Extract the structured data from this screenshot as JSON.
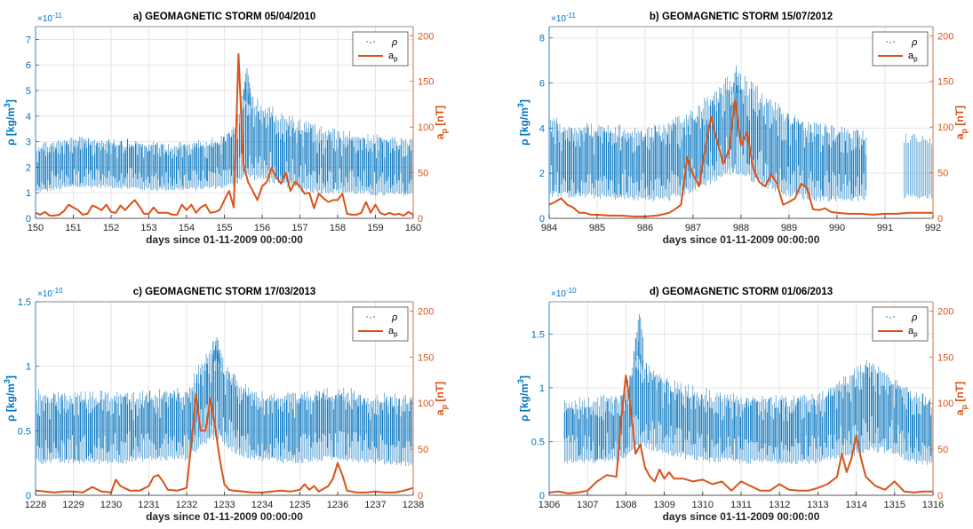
{
  "figure": {
    "colors": {
      "rho": "#0072BD",
      "ap": "#D95319",
      "axis": "#262626",
      "grid": "#e6e6e6"
    },
    "common": {
      "xlabel": "days since 01-11-2009 00:00:00",
      "y_left_label_main": "ρ [kg/m",
      "y_left_label_sup": "3",
      "y_left_label_close": "]",
      "y_right_label_main": "a",
      "y_right_label_sub": "p",
      "y_right_label_unit": " [nT]",
      "legend_rho": "ρ",
      "legend_ap_main": "a",
      "legend_ap_sub": "p",
      "legend_placement": "top-right",
      "grid": true
    }
  },
  "chart_data": [
    {
      "type": "line",
      "title": "a) GEOMAGNETIC STORM 05/04/2010",
      "xlim": [
        150,
        160
      ],
      "xticks": [
        150,
        151,
        152,
        153,
        154,
        155,
        156,
        157,
        158,
        159,
        160
      ],
      "y_left": {
        "lim": [
          0,
          7.5
        ],
        "ticks": [
          0,
          1,
          2,
          3,
          4,
          5,
          6,
          7
        ],
        "exponent": "×10",
        "exponent_power": "-11"
      },
      "y_right": {
        "lim": [
          0,
          210
        ],
        "ticks": [
          0,
          50,
          100,
          150,
          200
        ]
      },
      "series": [
        {
          "name": "ρ",
          "axis": "left",
          "style": "dense-points",
          "envelope": {
            "x": [
              150,
              151,
              152,
              153,
              154,
              155,
              155.3,
              155.5,
              156,
              156.5,
              157,
              157.5,
              158,
              159,
              160
            ],
            "low": [
              1.0,
              1.2,
              1.2,
              1.1,
              1.1,
              1.2,
              1.3,
              1.6,
              1.5,
              1.3,
              1.1,
              1.0,
              1.0,
              0.9,
              0.9
            ],
            "high": [
              3.0,
              3.2,
              3.2,
              3.0,
              3.0,
              3.3,
              3.7,
              5.5,
              4.6,
              4.2,
              3.9,
              3.7,
              3.5,
              3.3,
              3.1
            ],
            "peak": [
              155.6,
              6.0
            ]
          }
        },
        {
          "name": "a",
          "axis": "right",
          "x": [
            150,
            150.125,
            150.25,
            150.375,
            150.5,
            150.625,
            150.75,
            150.875,
            151,
            151.125,
            151.25,
            151.375,
            151.5,
            151.625,
            151.75,
            151.875,
            152,
            152.125,
            152.25,
            152.375,
            152.5,
            152.625,
            152.75,
            152.875,
            153,
            153.125,
            153.25,
            153.375,
            153.5,
            153.625,
            153.75,
            153.875,
            154,
            154.125,
            154.25,
            154.375,
            154.5,
            154.625,
            154.75,
            154.875,
            155,
            155.125,
            155.25,
            155.375,
            155.5,
            155.625,
            155.75,
            155.875,
            156,
            156.125,
            156.25,
            156.375,
            156.5,
            156.625,
            156.75,
            156.875,
            157,
            157.125,
            157.25,
            157.375,
            157.5,
            157.625,
            157.75,
            157.875,
            158,
            158.125,
            158.25,
            158.375,
            158.5,
            158.625,
            158.75,
            158.875,
            159,
            159.125,
            159.25,
            159.375,
            159.5,
            159.625,
            159.75,
            159.875,
            160
          ],
          "values": [
            6,
            4,
            7,
            3,
            3,
            4,
            8,
            15,
            12,
            9,
            4,
            5,
            14,
            12,
            9,
            15,
            7,
            6,
            14,
            9,
            15,
            20,
            13,
            5,
            5,
            12,
            6,
            6,
            6,
            4,
            4,
            15,
            9,
            15,
            6,
            12,
            15,
            6,
            7,
            9,
            20,
            30,
            12,
            180,
            60,
            40,
            30,
            20,
            35,
            40,
            55,
            45,
            38,
            50,
            30,
            40,
            35,
            27,
            28,
            11,
            27,
            22,
            18,
            20,
            20,
            27,
            5,
            4,
            4,
            6,
            18,
            6,
            15,
            6,
            4,
            6,
            4,
            5,
            3,
            7,
            4
          ]
        }
      ]
    },
    {
      "type": "line",
      "title": "b) GEOMAGNETIC STORM 15/07/2012",
      "xlim": [
        984,
        992
      ],
      "xticks": [
        984,
        985,
        986,
        987,
        988,
        989,
        990,
        991,
        992
      ],
      "y_left": {
        "lim": [
          0,
          8.5
        ],
        "ticks": [
          0,
          2,
          4,
          6,
          8
        ],
        "exponent": "×10",
        "exponent_power": "-11"
      },
      "y_right": {
        "lim": [
          0,
          210
        ],
        "ticks": [
          0,
          50,
          100,
          150,
          200
        ]
      },
      "series": [
        {
          "name": "ρ",
          "axis": "left",
          "style": "dense-points",
          "envelope": {
            "x": [
              984,
              985,
              986,
              986.5,
              987,
              987.5,
              987.8,
              988,
              988.5,
              989,
              989.5,
              990,
              990.6
            ],
            "low": [
              1.0,
              0.9,
              0.8,
              0.8,
              1.2,
              1.7,
              2.0,
              1.9,
              1.4,
              1.0,
              0.8,
              0.8,
              0.8
            ],
            "high": [
              4.5,
              4.2,
              4.1,
              4.3,
              5.0,
              6.0,
              6.6,
              6.5,
              5.6,
              4.8,
              4.3,
              4.1,
              4.0
            ],
            "gap": [
              990.6,
              991.4
            ],
            "after_gap": {
              "x": [
                991.4,
                992
              ],
              "low": [
                0.9,
                0.9
              ],
              "high": [
                3.9,
                3.6
              ]
            },
            "peak": [
              987.9,
              6.8
            ]
          }
        },
        {
          "name": "a",
          "axis": "right",
          "x": [
            984,
            984.125,
            984.25,
            984.375,
            984.5,
            984.625,
            984.75,
            984.875,
            985,
            985.25,
            985.5,
            985.75,
            986,
            986.25,
            986.5,
            986.625,
            986.75,
            986.875,
            987,
            987.125,
            987.25,
            987.375,
            987.5,
            987.625,
            987.75,
            987.875,
            988,
            988.125,
            988.25,
            988.375,
            988.5,
            988.625,
            988.75,
            988.875,
            989,
            989.125,
            989.25,
            989.375,
            989.5,
            989.625,
            989.75,
            989.875,
            990,
            990.25,
            990.5,
            990.75,
            991,
            991.25,
            991.5,
            991.75,
            992
          ],
          "values": [
            15,
            18,
            22,
            15,
            12,
            6,
            6,
            4,
            4,
            3,
            3,
            2,
            2,
            3,
            6,
            10,
            15,
            67,
            48,
            35,
            75,
            111,
            85,
            60,
            75,
            130,
            80,
            95,
            55,
            40,
            35,
            48,
            38,
            15,
            18,
            22,
            38,
            33,
            10,
            9,
            11,
            7,
            6,
            5,
            5,
            4,
            5,
            5,
            6,
            6,
            6
          ]
        }
      ]
    },
    {
      "type": "line",
      "title": "c) GEOMAGNETIC STORM 17/03/2013",
      "xlim": [
        1228,
        1238
      ],
      "xticks": [
        1228,
        1229,
        1230,
        1231,
        1232,
        1233,
        1234,
        1235,
        1236,
        1237,
        1238
      ],
      "y_left": {
        "lim": [
          0,
          1.5
        ],
        "ticks": [
          0,
          0.5,
          1,
          1.5
        ],
        "exponent": "×10",
        "exponent_power": "-10"
      },
      "y_right": {
        "lim": [
          0,
          210
        ],
        "ticks": [
          0,
          50,
          100,
          150,
          200
        ]
      },
      "series": [
        {
          "name": "ρ",
          "axis": "left",
          "style": "dense-points",
          "envelope": {
            "x": [
              1228,
              1229,
              1230,
              1231,
              1232,
              1232.5,
              1232.8,
              1233,
              1233.5,
              1234,
              1235,
              1236,
              1237,
              1238
            ],
            "low": [
              0.25,
              0.25,
              0.25,
              0.27,
              0.28,
              0.4,
              0.45,
              0.38,
              0.3,
              0.27,
              0.25,
              0.28,
              0.25,
              0.23
            ],
            "high": [
              0.82,
              0.8,
              0.82,
              0.82,
              0.85,
              1.1,
              1.25,
              1.05,
              0.88,
              0.82,
              0.8,
              0.85,
              0.8,
              0.78
            ],
            "peak": [
              1232.8,
              1.27
            ]
          }
        },
        {
          "name": "a",
          "axis": "right",
          "x": [
            1228,
            1228.25,
            1228.5,
            1228.75,
            1229,
            1229.25,
            1229.5,
            1229.75,
            1230,
            1230.125,
            1230.25,
            1230.5,
            1230.75,
            1231,
            1231.125,
            1231.25,
            1231.375,
            1231.5,
            1231.75,
            1232,
            1232.125,
            1232.25,
            1232.375,
            1232.5,
            1232.625,
            1232.75,
            1232.875,
            1233,
            1233.125,
            1233.25,
            1233.5,
            1233.75,
            1234,
            1234.25,
            1234.5,
            1234.75,
            1235,
            1235.125,
            1235.25,
            1235.375,
            1235.5,
            1235.75,
            1235.875,
            1236,
            1236.125,
            1236.25,
            1236.5,
            1236.75,
            1237,
            1237.25,
            1237.5,
            1237.75,
            1238
          ],
          "values": [
            5,
            4,
            3,
            4,
            4,
            3,
            9,
            4,
            3,
            17,
            10,
            5,
            5,
            10,
            20,
            22,
            15,
            6,
            5,
            8,
            55,
            110,
            70,
            70,
            105,
            75,
            40,
            12,
            6,
            5,
            4,
            3,
            3,
            4,
            5,
            4,
            6,
            12,
            6,
            10,
            4,
            10,
            18,
            35,
            22,
            5,
            3,
            3,
            4,
            3,
            3,
            5,
            8
          ]
        }
      ]
    },
    {
      "type": "line",
      "title": "d) GEOMAGNETIC STORM 01/06/2013",
      "xlim": [
        1306,
        1316
      ],
      "xticks": [
        1306,
        1307,
        1308,
        1309,
        1310,
        1311,
        1312,
        1313,
        1314,
        1315,
        1316
      ],
      "y_left": {
        "lim": [
          0,
          1.8
        ],
        "ticks": [
          0,
          0.5,
          1,
          1.5
        ],
        "exponent": "×10",
        "exponent_power": "-10"
      },
      "y_right": {
        "lim": [
          0,
          210
        ],
        "ticks": [
          0,
          50,
          100,
          150,
          200
        ]
      },
      "series": [
        {
          "name": "ρ",
          "axis": "left",
          "style": "dense-points",
          "envelope": {
            "x": [
              1306.4,
              1307,
              1308,
              1308.3,
              1308.5,
              1309,
              1310,
              1311,
              1312,
              1313,
              1313.8,
              1314.3,
              1314.8,
              1315.5,
              1316
            ],
            "low": [
              0.3,
              0.3,
              0.33,
              0.45,
              0.45,
              0.38,
              0.32,
              0.3,
              0.3,
              0.3,
              0.35,
              0.42,
              0.4,
              0.3,
              0.28
            ],
            "high": [
              0.9,
              0.92,
              0.98,
              1.55,
              1.3,
              1.1,
              1.0,
              0.95,
              0.93,
              0.95,
              1.15,
              1.3,
              1.2,
              0.98,
              0.92
            ],
            "peak": [
              1308.35,
              1.75
            ]
          }
        },
        {
          "name": "a",
          "axis": "right",
          "x": [
            1306,
            1306.25,
            1306.5,
            1306.75,
            1307,
            1307.25,
            1307.5,
            1307.75,
            1307.875,
            1308,
            1308.125,
            1308.25,
            1308.375,
            1308.5,
            1308.625,
            1308.75,
            1308.875,
            1309,
            1309.125,
            1309.25,
            1309.5,
            1309.75,
            1310,
            1310.25,
            1310.5,
            1310.75,
            1311,
            1311.25,
            1311.5,
            1311.75,
            1312,
            1312.25,
            1312.5,
            1312.75,
            1313,
            1313.25,
            1313.5,
            1313.625,
            1313.75,
            1313.875,
            1314,
            1314.125,
            1314.25,
            1314.5,
            1314.75,
            1315,
            1315.25,
            1315.5,
            1315.75,
            1316
          ],
          "values": [
            3,
            4,
            2,
            3,
            5,
            15,
            22,
            20,
            80,
            130,
            95,
            45,
            55,
            30,
            20,
            15,
            28,
            18,
            25,
            18,
            18,
            15,
            17,
            12,
            15,
            5,
            15,
            10,
            5,
            5,
            12,
            6,
            5,
            5,
            8,
            12,
            20,
            45,
            25,
            40,
            65,
            40,
            20,
            10,
            6,
            15,
            4,
            3,
            4,
            4
          ]
        }
      ]
    }
  ]
}
